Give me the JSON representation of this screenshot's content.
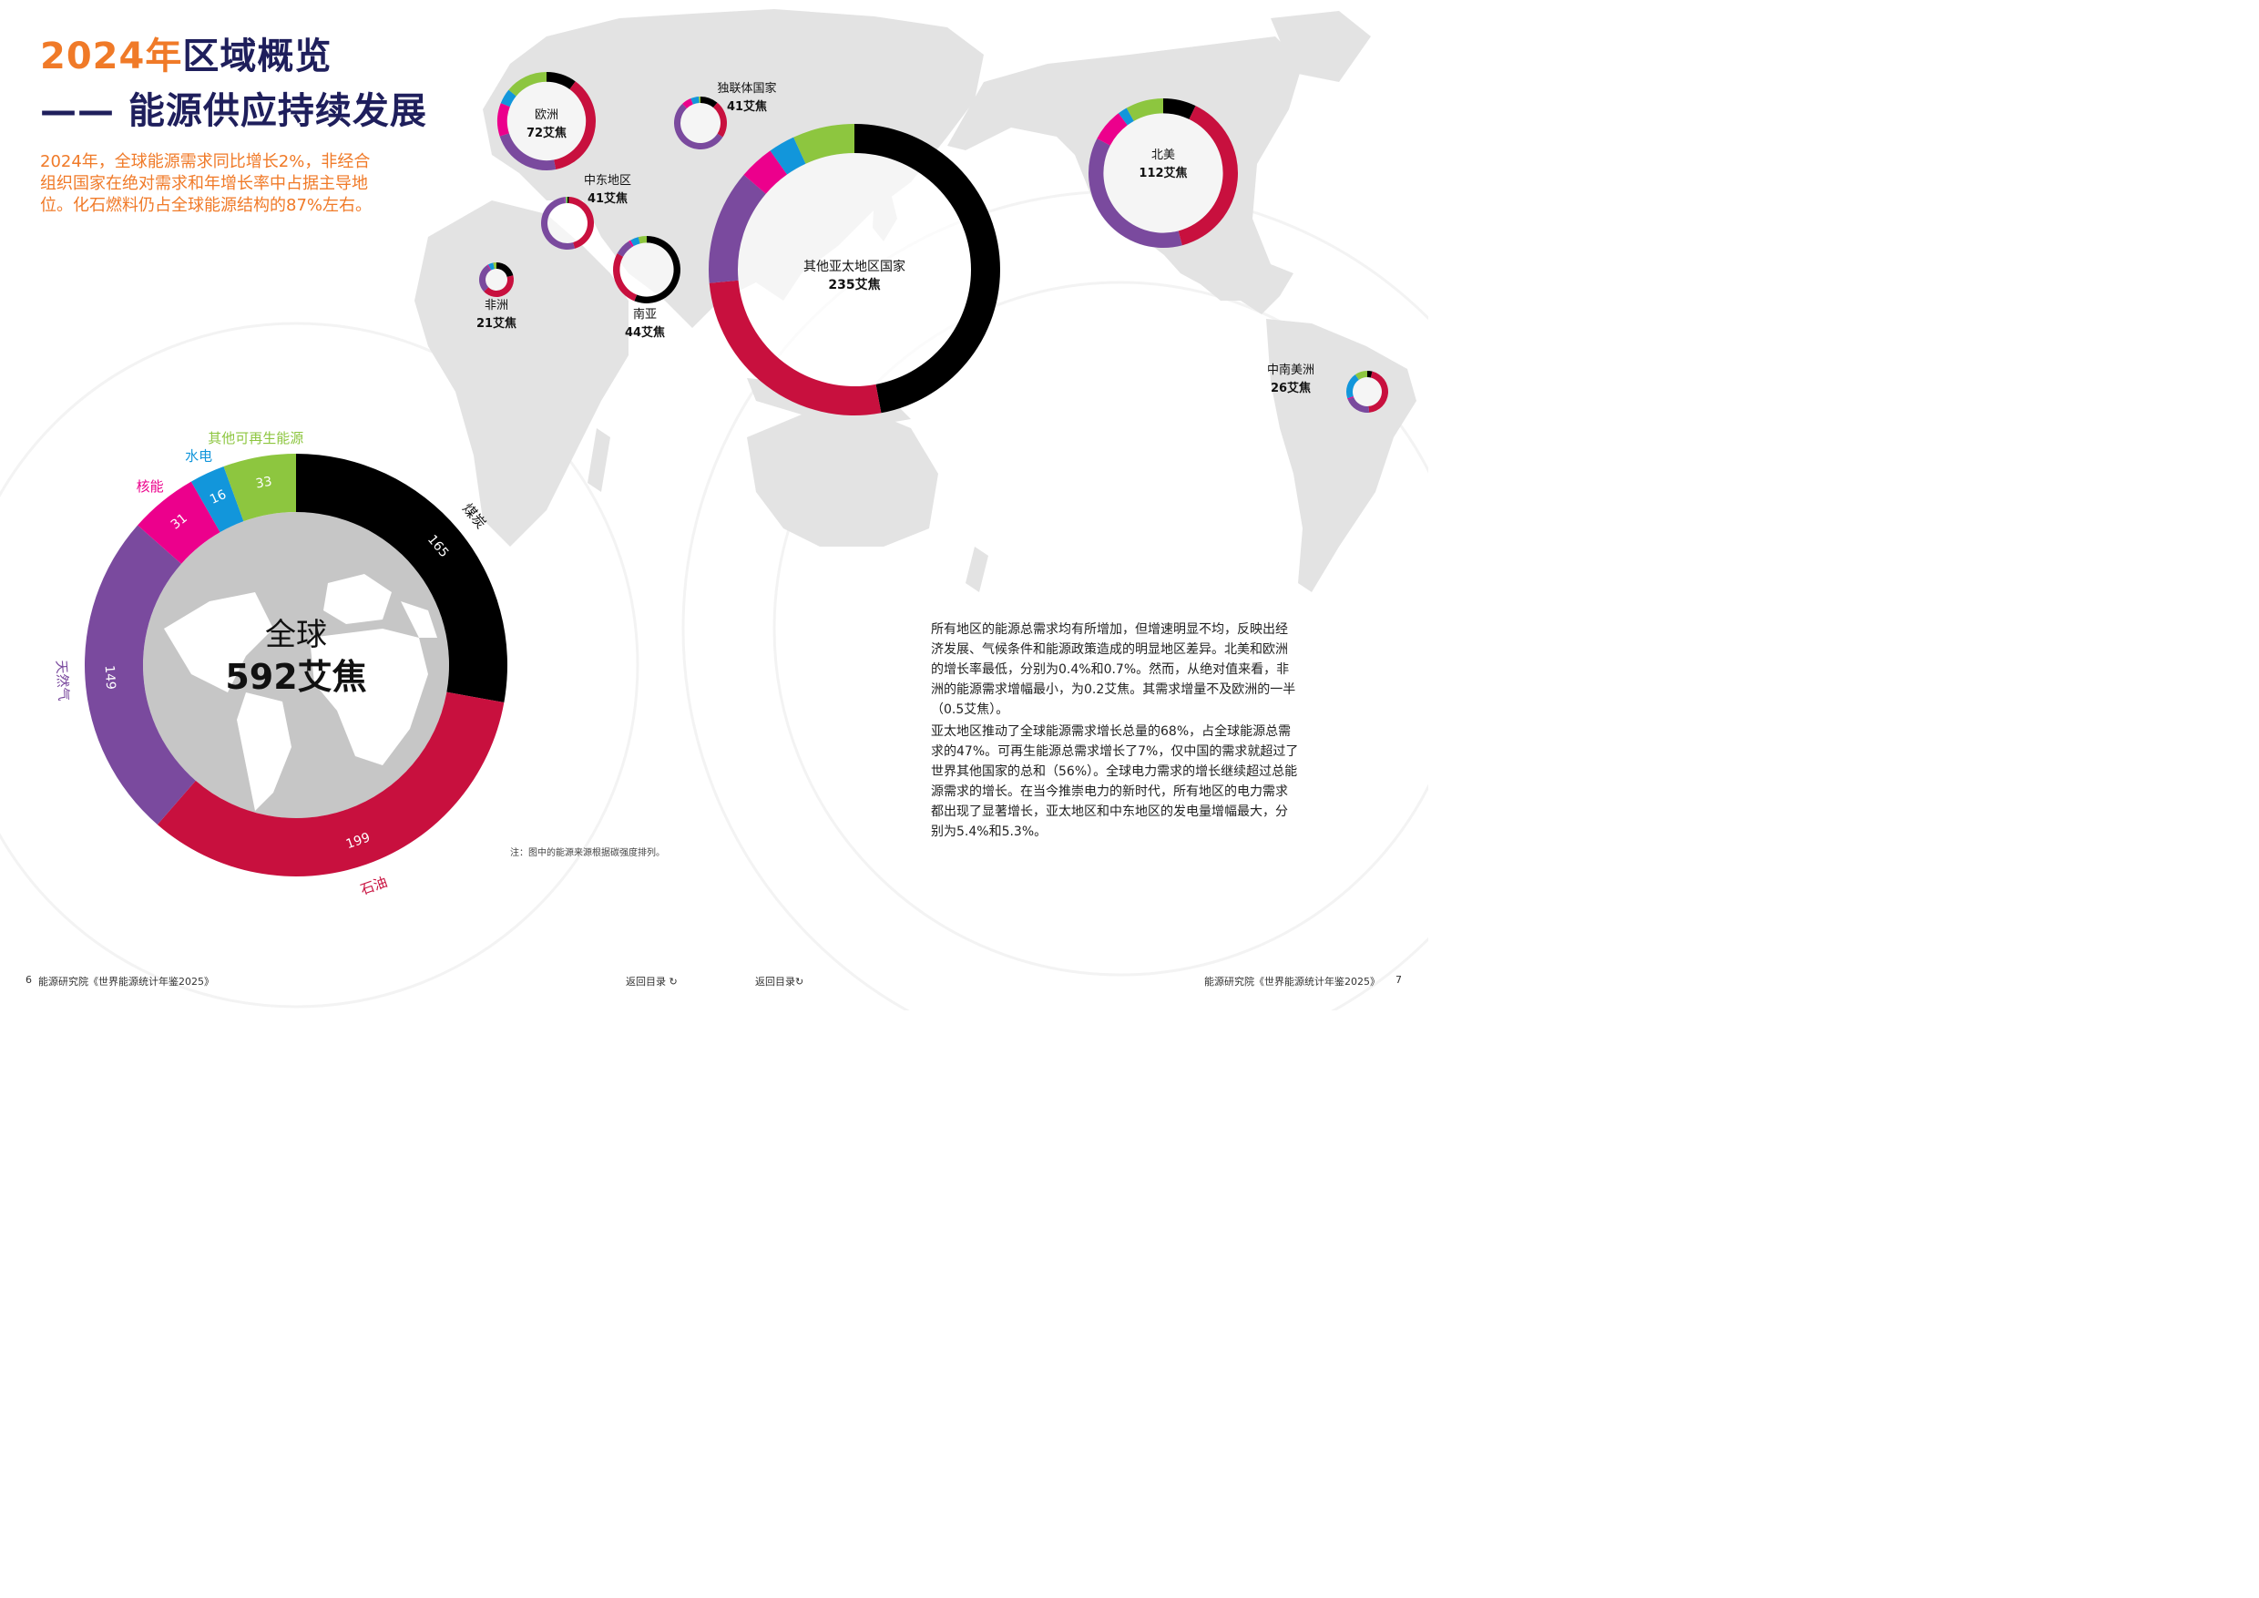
{
  "title": {
    "line1_accent": "2024年",
    "line1_rest": "区域概览",
    "line2": "—— 能源供应持续发展"
  },
  "intro": "2024年，全球能源需求同比增长2%，非经合组织国家在绝对需求和年增长率中占据主导地位。化石燃料仍占全球能源结构的87%左右。",
  "body": {
    "p1": "所有地区的能源总需求均有所增加，但增速明显不均，反映出经济发展、气候条件和能源政策造成的明显地区差异。北美和欧洲的增长率最低，分别为0.4%和0.7%。然而，从绝对值来看，非洲的能源需求增幅最小，为0.2艾焦。其需求增量不及欧洲的一半（0.5艾焦）。",
    "p2": "亚太地区推动了全球能源需求增长总量的68%，占全球能源总需求的47%。可再生能源总需求增长了7%，仅中国的需求就超过了世界其他国家的总和（56%）。全球电力需求的增长继续超过总能源需求的增长。在当今推崇电力的新时代，所有地区的电力需求都出现了显著增长，亚太地区和中东地区的发电量增幅最大，分别为5.4%和5.3%。"
  },
  "note": "注：图中的能源来源根据碳强度排列。",
  "footer": {
    "left_page": "6",
    "left_text": "能源研究院《世界能源统计年鉴2025》",
    "back_link_1": "返回目录 ↻",
    "back_link_2": "返回目录↻",
    "right_text": "能源研究院《世界能源统计年鉴2025》",
    "right_page": "7"
  },
  "colors": {
    "coal": "#000000",
    "oil": "#c8103e",
    "gas": "#7a4a9e",
    "nuclear": "#ec008c",
    "hydro": "#1296db",
    "renewables": "#8dc63f",
    "map": "#e3e3e3",
    "globe": "#c6c6c6",
    "title_accent": "#f07a28",
    "title_main": "#1f1f5c"
  },
  "chart_data": [
    {
      "type": "pie",
      "style": "donut",
      "title": "全球",
      "total_label": "592艾焦",
      "categories": [
        "煤炭",
        "石油",
        "天然气",
        "核能",
        "水电",
        "其他可再生能源"
      ],
      "values": [
        165,
        199,
        149,
        31,
        16,
        33
      ],
      "unit": "艾焦"
    },
    {
      "type": "pie",
      "style": "donut-map",
      "categories": [
        "煤炭",
        "石油",
        "天然气",
        "核能",
        "水电",
        "其他可再生能源"
      ],
      "regions": [
        {
          "name": "欧洲",
          "total_label": "72艾焦",
          "total": 72,
          "share": [
            0.1,
            0.37,
            0.23,
            0.11,
            0.05,
            0.14
          ]
        },
        {
          "name": "独联体国家",
          "total_label": "41艾焦",
          "total": 41,
          "share": [
            0.11,
            0.23,
            0.54,
            0.06,
            0.05,
            0.01
          ]
        },
        {
          "name": "中东地区",
          "total_label": "41艾焦",
          "total": 41,
          "share": [
            0.01,
            0.45,
            0.53,
            0.005,
            0.005,
            0.01
          ]
        },
        {
          "name": "非洲",
          "total_label": "21艾焦",
          "total": 21,
          "share": [
            0.21,
            0.42,
            0.28,
            0.01,
            0.05,
            0.03
          ]
        },
        {
          "name": "南亚",
          "total_label": "44艾焦",
          "total": 44,
          "share": [
            0.56,
            0.27,
            0.08,
            0.01,
            0.04,
            0.04
          ]
        },
        {
          "name": "其他亚太地区国家",
          "total_label": "235艾焦",
          "total": 235,
          "share": [
            0.48,
            0.27,
            0.13,
            0.04,
            0.03,
            0.07
          ]
        },
        {
          "name": "北美",
          "total_label": "112艾焦",
          "total": 112,
          "share": [
            0.07,
            0.38,
            0.36,
            0.07,
            0.02,
            0.08
          ]
        },
        {
          "name": "中南美洲",
          "total_label": "26艾焦",
          "total": 26,
          "share": [
            0.04,
            0.46,
            0.21,
            0.01,
            0.21,
            0.1
          ]
        }
      ]
    }
  ]
}
